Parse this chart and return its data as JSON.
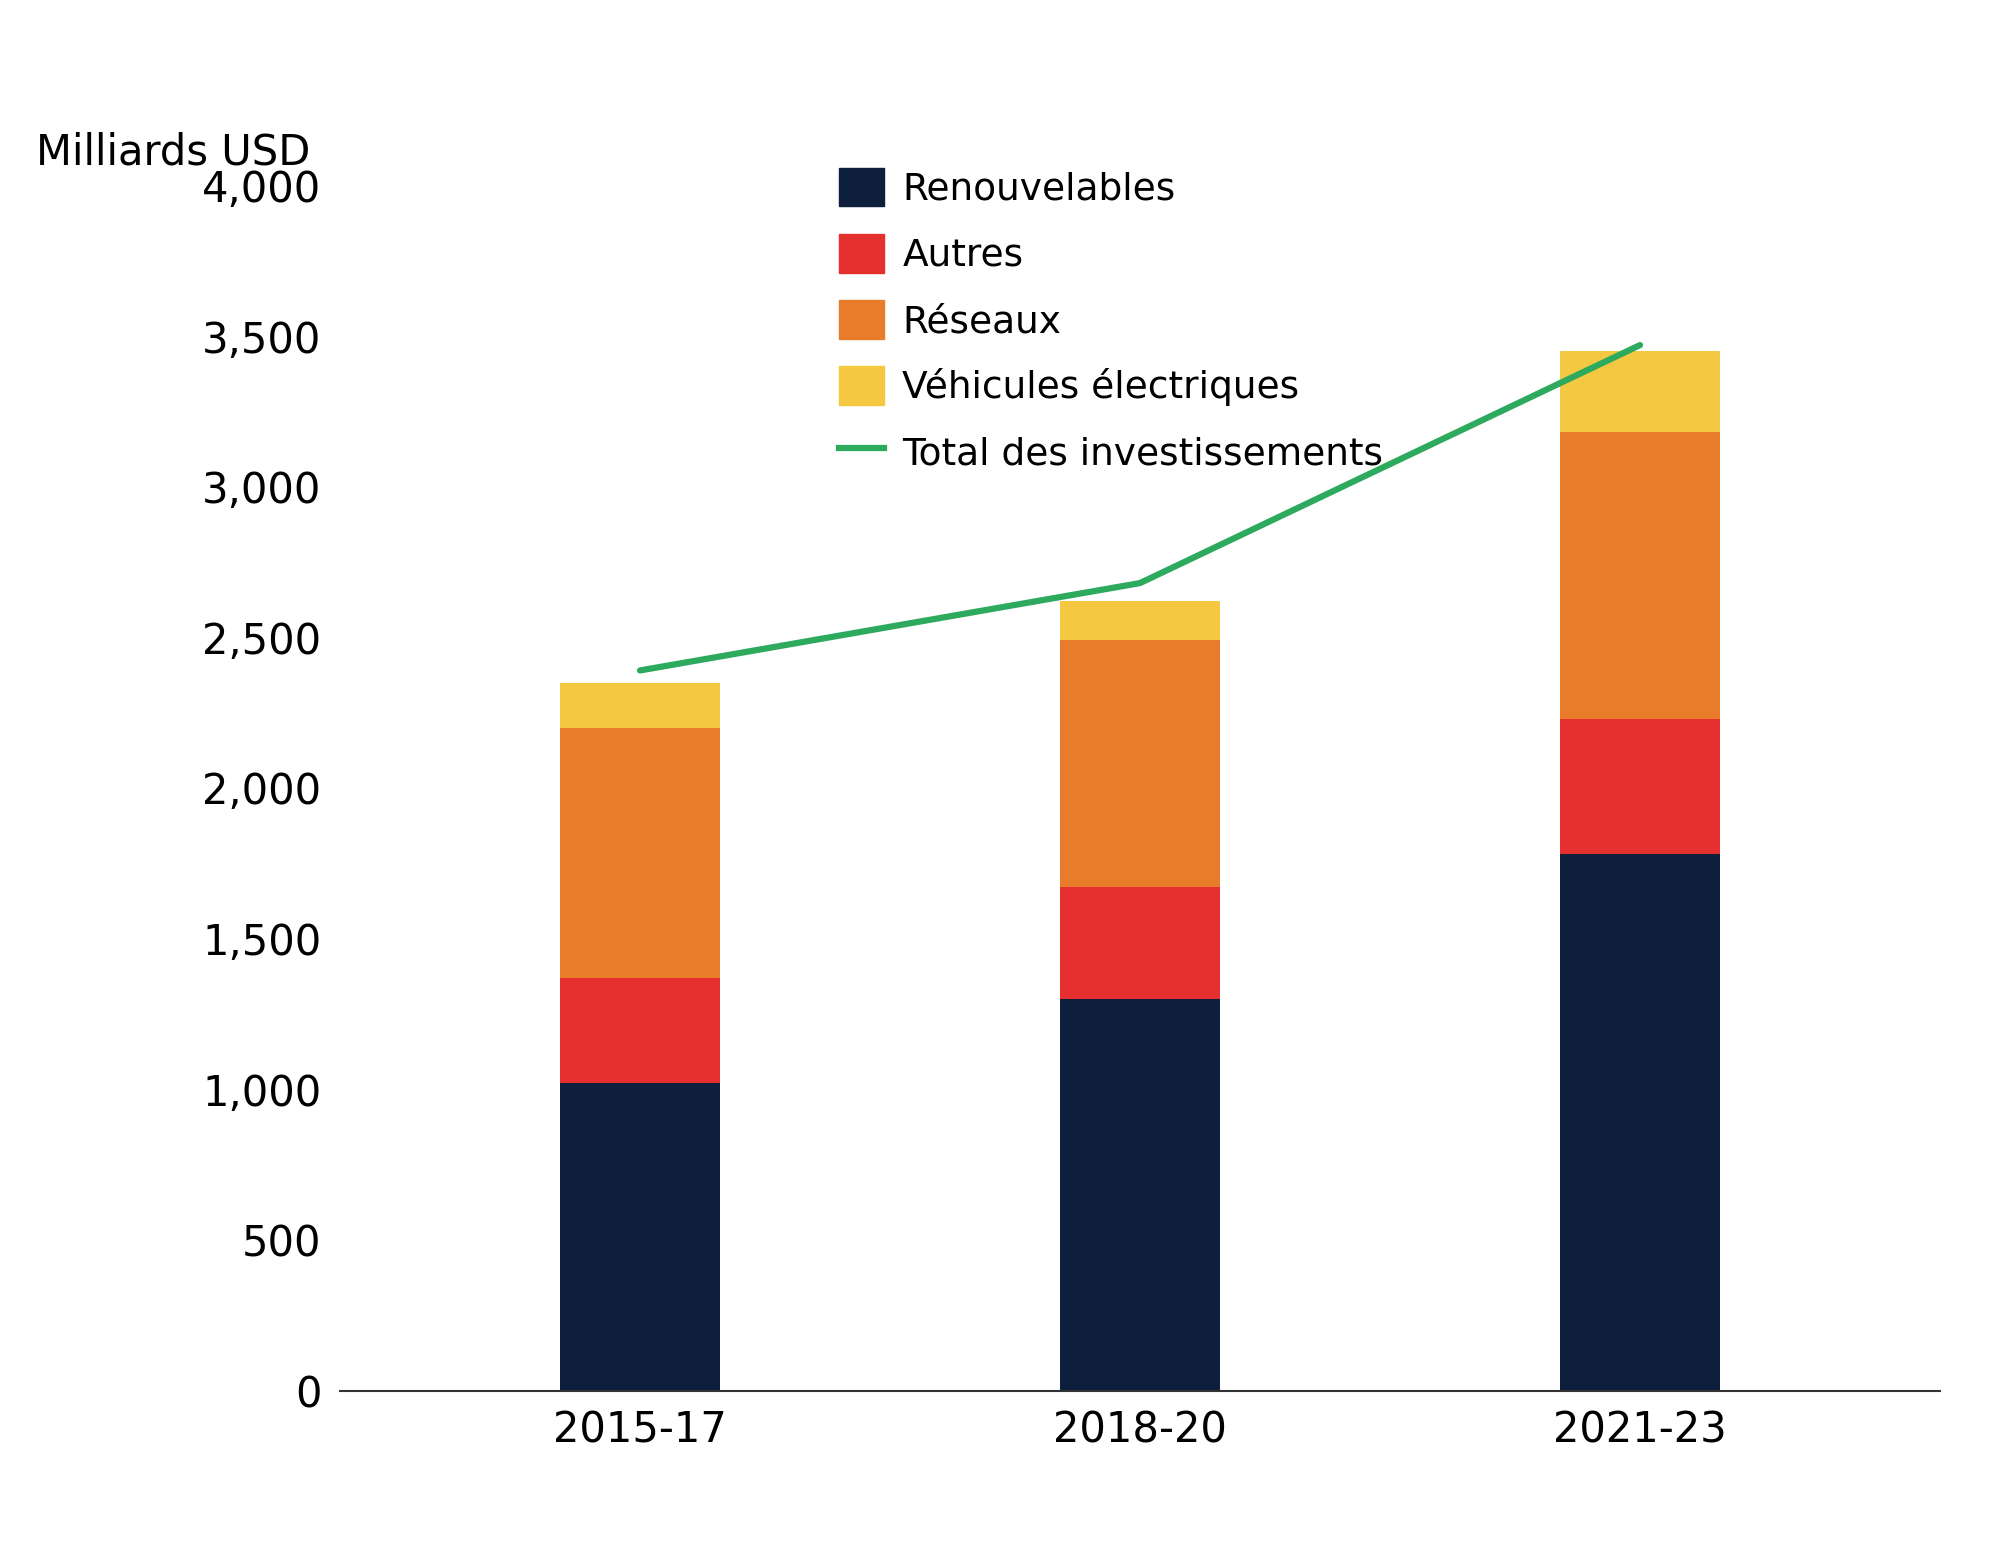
{
  "categories": [
    "2015-17",
    "2018-20",
    "2021-23"
  ],
  "renouvelables": [
    1020,
    1300,
    1780
  ],
  "autres": [
    350,
    370,
    450
  ],
  "reseaux": [
    830,
    820,
    950
  ],
  "vehicules": [
    150,
    130,
    270
  ],
  "line_values": [
    2390,
    2680,
    3470
  ],
  "color_renouvelables": "#0d1f3c",
  "color_autres": "#e63030",
  "color_reseaux": "#e87c2a",
  "color_vehicules": "#f5c842",
  "color_line": "#2eaa5e",
  "ylabel": "Milliards USD",
  "ylim": [
    0,
    4000
  ],
  "yticks": [
    0,
    500,
    1000,
    1500,
    2000,
    2500,
    3000,
    3500,
    4000
  ],
  "legend_renouvelables": "Renouvelables",
  "legend_autres": "Autres",
  "legend_reseaux": "Réseaux",
  "legend_vehicules": "Véhicules électriques",
  "legend_line": "Total des investissements",
  "bar_width": 0.32,
  "background_color": "#ffffff",
  "axis_fontsize": 30,
  "tick_fontsize": 30,
  "legend_fontsize": 27
}
